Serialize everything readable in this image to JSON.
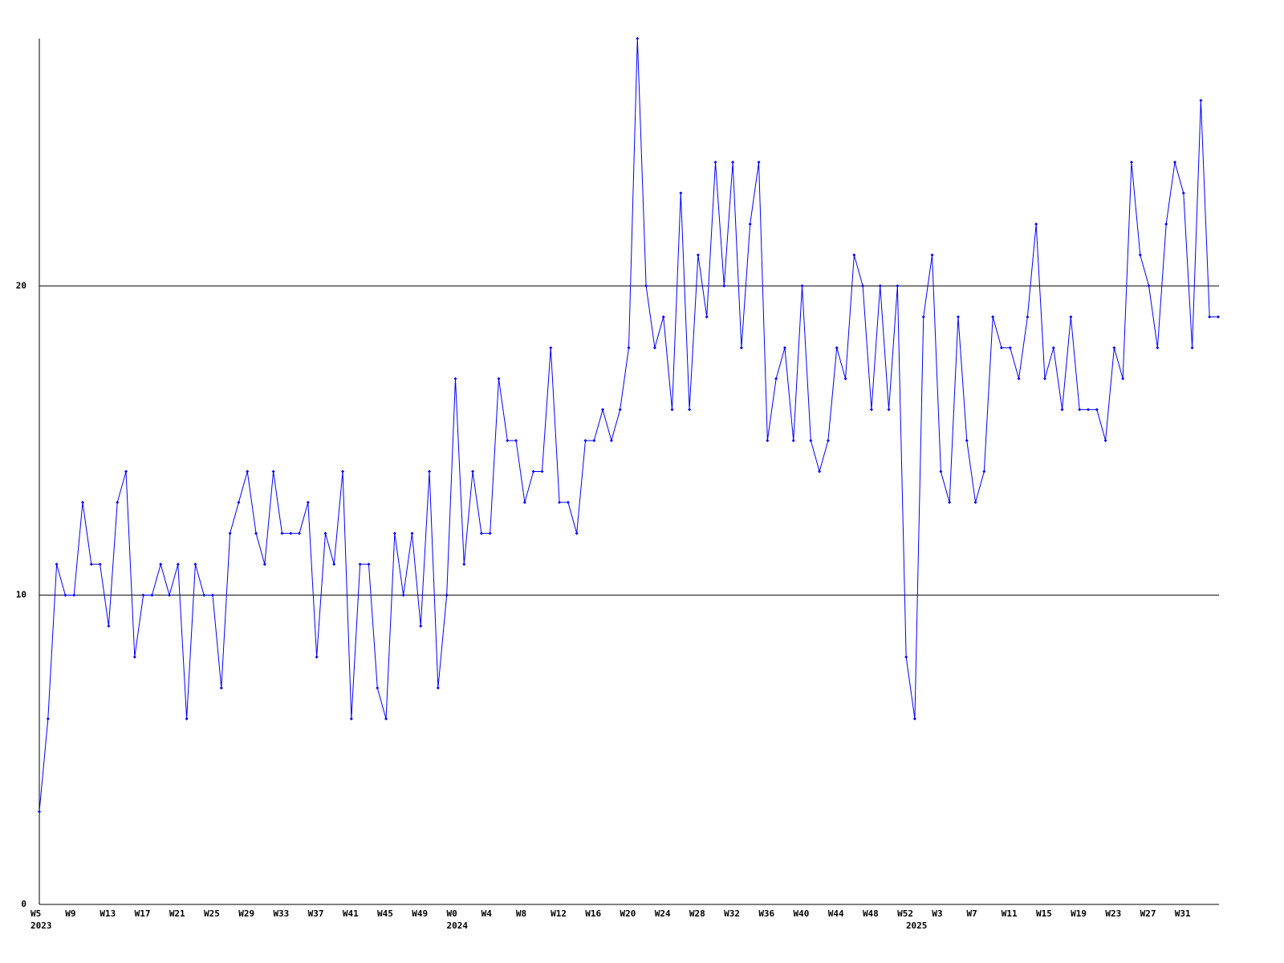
{
  "chart_data": {
    "type": "line",
    "categories": [
      "W5",
      null,
      null,
      null,
      "W9",
      null,
      null,
      null,
      "W13",
      null,
      null,
      null,
      "W17",
      null,
      null,
      null,
      "W21",
      null,
      null,
      null,
      "W25",
      null,
      null,
      null,
      "W29",
      null,
      null,
      null,
      "W33",
      null,
      null,
      null,
      "W37",
      null,
      null,
      null,
      "W41",
      null,
      null,
      null,
      "W45",
      null,
      null,
      null,
      "W49",
      null,
      null,
      null,
      "W0",
      null,
      null,
      null,
      "W4",
      null,
      null,
      null,
      "W8",
      null,
      null,
      null,
      "W12",
      null,
      null,
      null,
      "W16",
      null,
      null,
      null,
      "W20",
      null,
      null,
      null,
      "W24",
      null,
      null,
      null,
      "W28",
      null,
      null,
      null,
      "W32",
      null,
      null,
      null,
      "W36",
      null,
      null,
      null,
      "W40",
      null,
      null,
      null,
      "W44",
      null,
      null,
      null,
      "W48",
      null,
      null,
      null,
      "W52",
      null,
      null,
      null,
      "W3",
      null,
      null,
      null,
      "W7",
      null,
      null,
      null,
      "W11",
      null,
      null,
      null,
      "W15",
      null,
      null,
      null,
      "W19",
      null,
      null,
      null,
      "W23",
      null,
      null,
      null,
      "W27",
      null,
      null,
      null,
      "W31",
      null,
      null,
      null,
      null
    ],
    "category_years": [
      "2023",
      null,
      null,
      null,
      null,
      null,
      null,
      null,
      null,
      null,
      null,
      null,
      null,
      null,
      null,
      null,
      null,
      null,
      null,
      null,
      null,
      null,
      null,
      null,
      null,
      null,
      null,
      null,
      null,
      null,
      null,
      null,
      null,
      null,
      null,
      null,
      null,
      null,
      null,
      null,
      null,
      null,
      null,
      null,
      null,
      null,
      null,
      null,
      "2024",
      null,
      null,
      null,
      null,
      null,
      null,
      null,
      null,
      null,
      null,
      null,
      null,
      null,
      null,
      null,
      null,
      null,
      null,
      null,
      null,
      null,
      null,
      null,
      null,
      null,
      null,
      null,
      null,
      null,
      null,
      null,
      null,
      null,
      null,
      null,
      null,
      null,
      null,
      null,
      null,
      null,
      null,
      null,
      null,
      null,
      null,
      null,
      null,
      null,
      null,
      null,
      null,
      "2025",
      null,
      null,
      null,
      null,
      null,
      null,
      null,
      null,
      null,
      null,
      null,
      null,
      null,
      null,
      null,
      null,
      null,
      null,
      null,
      null,
      null,
      null,
      null,
      null,
      null,
      null,
      null,
      null,
      null,
      null,
      null,
      null,
      null,
      null,
      null
    ],
    "series": [
      {
        "color": "#0000ff",
        "values": [
          3,
          6,
          11,
          10,
          10,
          13,
          11,
          11,
          9,
          13,
          14,
          8,
          10,
          10,
          11,
          10,
          11,
          6,
          11,
          10,
          10,
          7,
          12,
          13,
          14,
          12,
          11,
          14,
          12,
          12,
          12,
          13,
          8,
          12,
          11,
          14,
          6,
          11,
          11,
          7,
          6,
          12,
          10,
          12,
          9,
          14,
          7,
          10,
          17,
          11,
          14,
          12,
          12,
          17,
          15,
          15,
          13,
          14,
          14,
          18,
          13,
          13,
          12,
          15,
          15,
          16,
          15,
          16,
          18,
          28,
          20,
          18,
          19,
          16,
          23,
          16,
          21,
          19,
          24,
          20,
          24,
          18,
          22,
          24,
          15,
          17,
          18,
          15,
          20,
          15,
          14,
          15,
          18,
          17,
          21,
          20,
          16,
          20,
          16,
          20,
          8,
          6,
          19,
          21,
          14,
          13,
          19,
          15,
          13,
          14,
          19,
          18,
          18,
          17,
          19,
          22,
          17,
          18,
          16,
          19,
          16,
          16,
          16,
          15,
          18,
          17,
          24,
          21,
          20,
          18,
          22,
          24,
          23,
          18,
          26,
          19,
          19
        ]
      }
    ],
    "ylim": [
      0,
      28
    ],
    "yticks": [
      0,
      10,
      20
    ],
    "grid": true
  }
}
